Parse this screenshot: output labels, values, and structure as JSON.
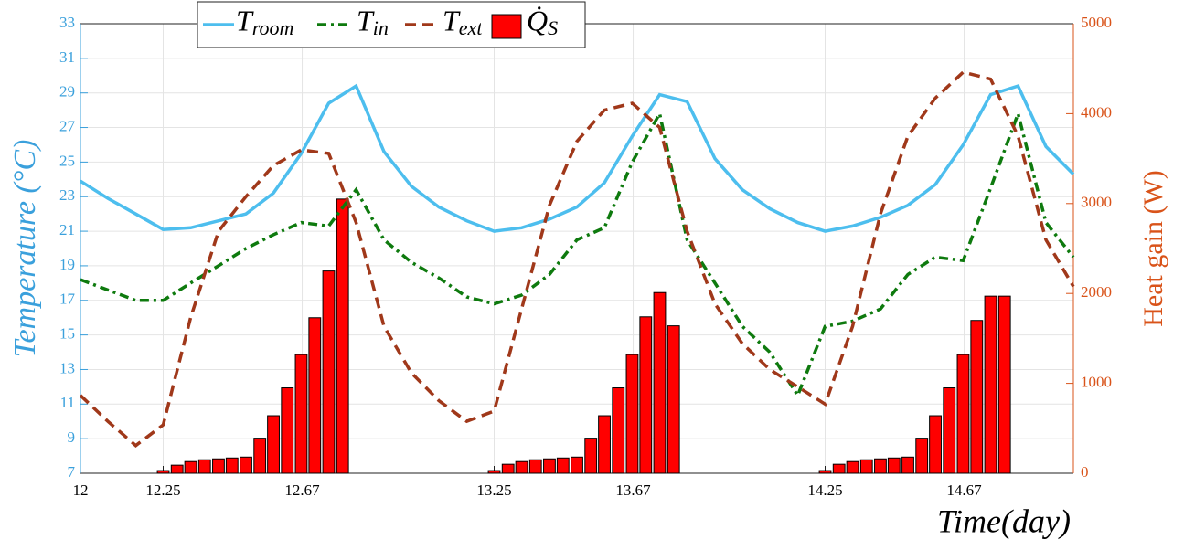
{
  "chart_data": {
    "type": "line",
    "x_label": "Time(day)",
    "y_label": "Temperature (°C)",
    "y2_label": "Heat gain (W)",
    "x": [
      12,
      12.083,
      12.167,
      12.25,
      12.333,
      12.417,
      12.5,
      12.583,
      12.667,
      12.75,
      12.833,
      12.917,
      13,
      13.083,
      13.167,
      13.25,
      13.333,
      13.417,
      13.5,
      13.583,
      13.667,
      13.75,
      13.833,
      13.917,
      14,
      14.083,
      14.167,
      14.25,
      14.333,
      14.417,
      14.5,
      14.583,
      14.667,
      14.75,
      14.833,
      14.917,
      15
    ],
    "xlim": [
      12,
      15
    ],
    "xticks": [
      12,
      12.25,
      12.67,
      13.25,
      13.67,
      14.25,
      14.67
    ],
    "ylim": [
      7,
      33
    ],
    "yticks": [
      7,
      9,
      11,
      13,
      15,
      17,
      19,
      21,
      23,
      25,
      27,
      29,
      31,
      33
    ],
    "y2lim": [
      0,
      5000
    ],
    "y2ticks": [
      0,
      1000,
      2000,
      3000,
      4000,
      5000
    ],
    "grid": true,
    "legend": "top",
    "series": [
      {
        "name": "T_room",
        "type": "line",
        "color": "#4DBEEE",
        "dash": "solid",
        "values": [
          23.9,
          22.9,
          22.0,
          21.1,
          21.2,
          21.6,
          22.0,
          23.2,
          25.5,
          28.4,
          29.4,
          25.6,
          23.6,
          22.4,
          21.6,
          21.0,
          21.2,
          21.7,
          22.4,
          23.8,
          26.5,
          28.9,
          28.5,
          25.2,
          23.4,
          22.3,
          21.5,
          21.0,
          21.3,
          21.8,
          22.5,
          23.7,
          26.0,
          28.9,
          29.4,
          25.9,
          24.3
        ]
      },
      {
        "name": "T_in",
        "type": "line",
        "color": "#0E7A0E",
        "dash": "dashdot",
        "values": [
          18.2,
          17.6,
          17.0,
          17.0,
          18.0,
          19.0,
          20.0,
          20.8,
          21.5,
          21.3,
          23.4,
          20.5,
          19.2,
          18.3,
          17.2,
          16.8,
          17.3,
          18.5,
          20.5,
          21.2,
          25.0,
          27.8,
          20.5,
          18.0,
          15.5,
          14.0,
          11.5,
          15.5,
          15.8,
          16.5,
          18.5,
          19.5,
          19.3,
          23.5,
          27.8,
          21.5,
          19.5
        ]
      },
      {
        "name": "T_ext",
        "type": "line",
        "color": "#A0381A",
        "dash": "dashed",
        "values": [
          11.5,
          10.0,
          8.6,
          9.8,
          16.0,
          21.0,
          23.0,
          24.8,
          25.7,
          25.5,
          21.5,
          15.5,
          12.8,
          11.2,
          10.0,
          10.6,
          16.5,
          22.5,
          26.2,
          28.0,
          28.4,
          27.0,
          21.0,
          16.8,
          14.5,
          13.0,
          12.0,
          11.0,
          15.5,
          22.0,
          26.5,
          28.7,
          30.2,
          29.8,
          26.5,
          20.5,
          17.8
        ]
      },
      {
        "name": "Q̇_S",
        "type": "bar",
        "axis": "y2",
        "color": "#FF0000",
        "x": [
          12.25,
          12.292,
          12.333,
          12.375,
          12.417,
          12.458,
          12.5,
          12.542,
          12.583,
          12.625,
          12.667,
          12.708,
          12.75,
          12.792,
          13.25,
          13.292,
          13.333,
          13.375,
          13.417,
          13.458,
          13.5,
          13.542,
          13.583,
          13.625,
          13.667,
          13.708,
          13.75,
          13.792,
          14.25,
          14.292,
          14.333,
          14.375,
          14.417,
          14.458,
          14.5,
          14.542,
          14.583,
          14.625,
          14.667,
          14.708,
          14.75,
          14.792
        ],
        "values": [
          30,
          90,
          130,
          150,
          160,
          170,
          180,
          390,
          640,
          950,
          1320,
          1730,
          2250,
          3050,
          30,
          100,
          130,
          150,
          160,
          170,
          180,
          390,
          640,
          950,
          1320,
          1740,
          2010,
          1640,
          30,
          100,
          130,
          150,
          160,
          170,
          180,
          390,
          640,
          950,
          1320,
          1700,
          1970,
          1970
        ]
      }
    ]
  }
}
